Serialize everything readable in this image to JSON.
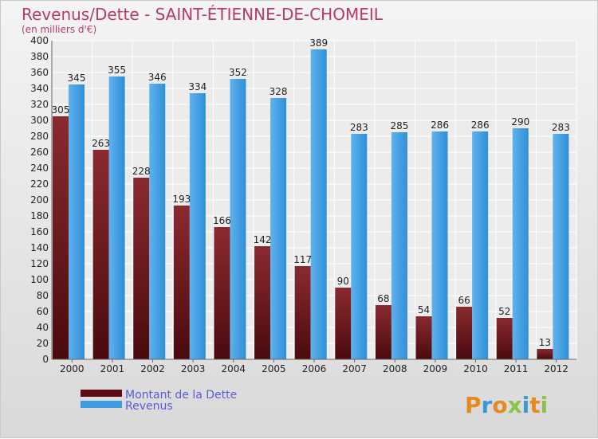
{
  "chart_data": {
    "type": "bar",
    "title": "Revenus/Dette - SAINT-ÉTIENNE-DE-CHOMEIL",
    "subtitle": "(en milliers d'€)",
    "categories": [
      "2000",
      "2001",
      "2002",
      "2003",
      "2004",
      "2005",
      "2006",
      "2007",
      "2008",
      "2009",
      "2010",
      "2011",
      "2012"
    ],
    "series": [
      {
        "name": "Montant de la Dette",
        "color": "#7a1a1f",
        "values": [
          305,
          263,
          228,
          193,
          166,
          142,
          117,
          90,
          68,
          54,
          66,
          52,
          13
        ]
      },
      {
        "name": "Revenus",
        "color": "#3d9be0",
        "values": [
          345,
          355,
          346,
          334,
          352,
          328,
          389,
          283,
          285,
          286,
          286,
          290,
          283
        ]
      }
    ],
    "ylim": [
      0,
      400
    ],
    "ytick_step": 20,
    "grid": true,
    "legend_position": "bottom-left"
  },
  "logo": {
    "letters": [
      "P",
      "r",
      "o",
      "x",
      "i",
      "t",
      "i"
    ],
    "colors": [
      "#e58a1f",
      "#3a9ad9",
      "#e58a1f",
      "#8bc34a",
      "#3a9ad9",
      "#e58a1f",
      "#8bc34a"
    ]
  }
}
